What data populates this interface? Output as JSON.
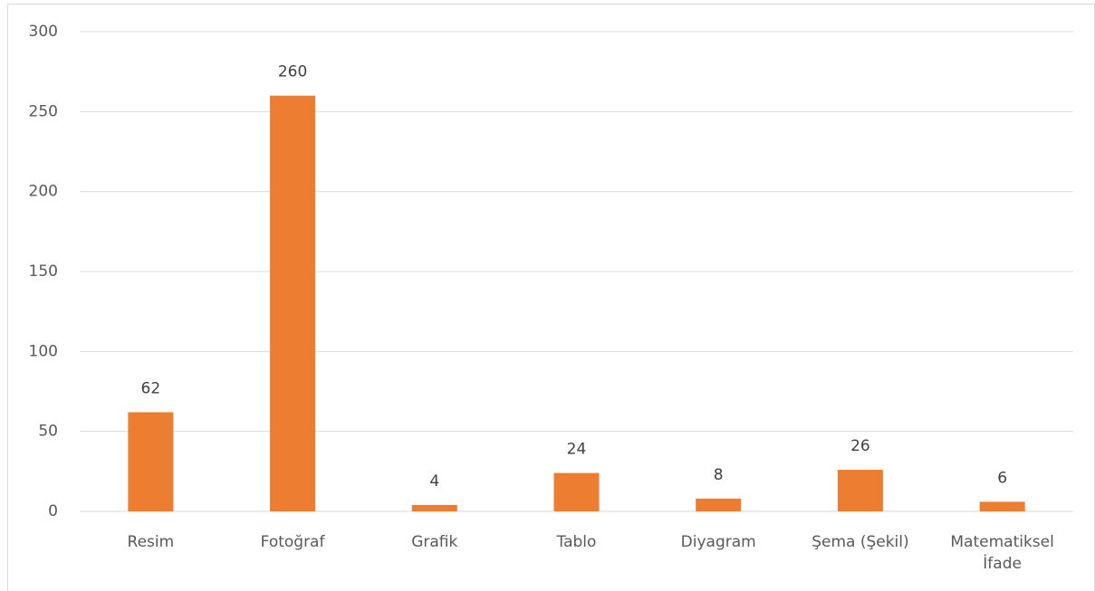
{
  "chart_data": {
    "type": "bar",
    "categories": [
      "Resim",
      "Fotoğraf",
      "Grafik",
      "Tablo",
      "Diyagram",
      "Şema (Şekil)",
      "Matematiksel İfade"
    ],
    "values": [
      62,
      260,
      4,
      24,
      8,
      26,
      6
    ],
    "color": "#ed7d31",
    "ylim": [
      0,
      300
    ],
    "yticks": [
      0,
      50,
      100,
      150,
      200,
      250,
      300
    ],
    "grid": true
  }
}
